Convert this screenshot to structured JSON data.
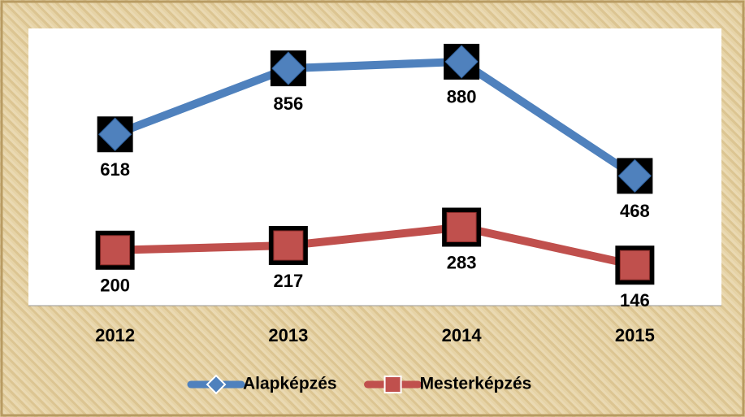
{
  "chart_data": {
    "type": "line",
    "categories": [
      "2012",
      "2013",
      "2014",
      "2015"
    ],
    "series": [
      {
        "name": "Alapképzés",
        "color": "#4f81bd",
        "values": [
          618,
          856,
          880,
          468
        ]
      },
      {
        "name": "Mesterképzés",
        "color": "#c0504d",
        "values": [
          200,
          217,
          283,
          146
        ]
      }
    ],
    "ylim": [
      0,
      1000
    ],
    "legend": "bottom"
  }
}
